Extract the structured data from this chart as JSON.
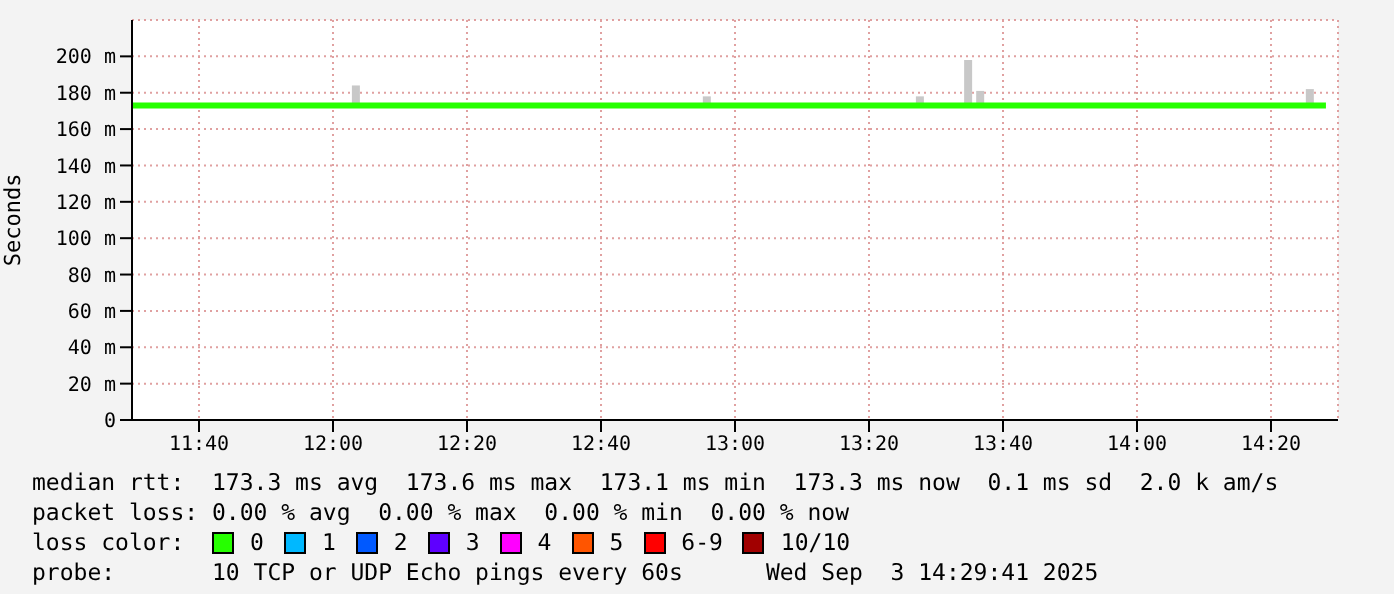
{
  "chart_data": {
    "type": "line",
    "ylabel": "Seconds",
    "legend_title": "loss color:",
    "legend": "bottom",
    "grid": true,
    "marker": "none",
    "xlim": [
      11.5,
      14.5
    ],
    "xticks": [
      {
        "value": 11.6667,
        "label": "11:40"
      },
      {
        "value": 12,
        "label": "12:00"
      },
      {
        "value": 12.3333,
        "label": "12:20"
      },
      {
        "value": 12.6667,
        "label": "12:40"
      },
      {
        "value": 13,
        "label": "13:00"
      },
      {
        "value": 13.3333,
        "label": "13:20"
      },
      {
        "value": 13.6667,
        "label": "13:40"
      },
      {
        "value": 14,
        "label": "14:00"
      },
      {
        "value": 14.3333,
        "label": "14:20"
      }
    ],
    "ylim": [
      0,
      220
    ],
    "yticks": [
      0,
      {
        "value": 20,
        "label": "20 m"
      },
      {
        "value": 40,
        "label": "40 m"
      },
      {
        "value": 60,
        "label": "60 m"
      },
      {
        "value": 80,
        "label": "80 m"
      },
      {
        "value": 100,
        "label": "100 m"
      },
      {
        "value": 120,
        "label": "120 m"
      },
      {
        "value": 140,
        "label": "140 m"
      },
      {
        "value": 160,
        "label": "160 m"
      },
      {
        "value": 180,
        "label": "180 m"
      },
      {
        "value": 200,
        "label": "200 m"
      }
    ],
    "series": [
      {
        "type": "bar",
        "color": "#c8c8c8",
        "x": [
          12.057,
          12.93,
          13.46,
          13.58,
          13.61,
          14.43
        ],
        "base": [
          173,
          173,
          173,
          173,
          173,
          173
        ],
        "values": [
          11,
          5,
          5,
          25,
          8,
          9
        ]
      },
      {
        "name": "0",
        "color": "#26ff00",
        "x": [
          11.5,
          11.75,
          12,
          12.25,
          12.5,
          12.75,
          13,
          13.25,
          13.5,
          13.75,
          14,
          14.25,
          14.47
        ],
        "values": [
          173,
          173,
          173,
          173,
          173,
          173,
          173,
          173,
          173,
          173,
          173,
          173,
          173
        ]
      },
      {
        "name": "1",
        "color": "#00b8ff"
      },
      {
        "name": "2",
        "color": "#0059ff"
      },
      {
        "name": "3",
        "color": "#5e00ff"
      },
      {
        "name": "4",
        "color": "#ff00ff"
      },
      {
        "name": "5",
        "color": "#ff5500"
      },
      {
        "name": "6-9",
        "color": "#ff0000"
      },
      {
        "name": "10/10",
        "color": "#a10000"
      }
    ],
    "annotations": [
      "median rtt:  173.3 ms avg  173.6 ms max  173.1 ms min  173.3 ms now  0.1 ms sd  2.0 k am/s",
      "packet loss: 0.00 % avg  0.00 % max  0.00 % min  0.00 % now",
      "probe:       10 TCP or UDP Echo pings every 60s      Wed Sep  3 14:29:41 2025"
    ]
  }
}
